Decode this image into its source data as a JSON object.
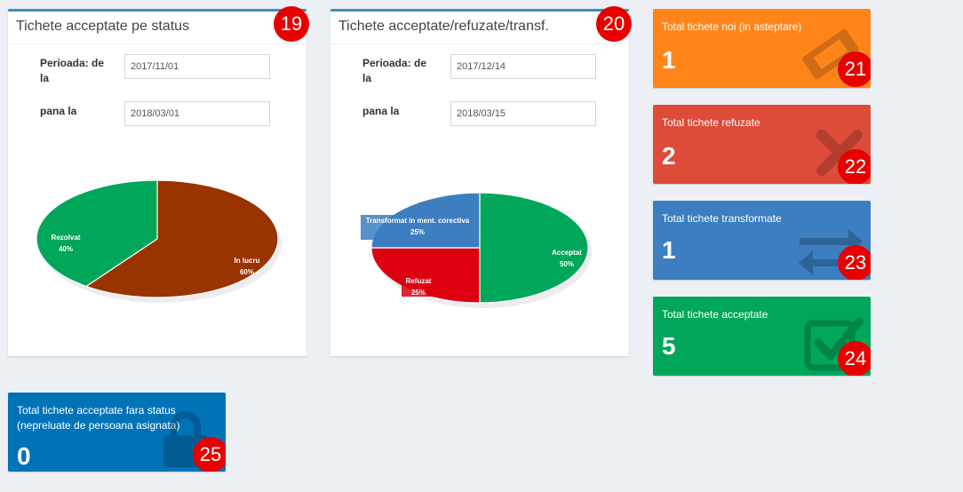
{
  "panel_status": {
    "title": "Tichete acceptate pe status",
    "period_from_label": "Perioada: de la",
    "period_from_value": "2017/11/01",
    "period_to_label": "pana la",
    "period_to_value": "2018/03/01",
    "badge": "19"
  },
  "panel_accept": {
    "title": "Tichete acceptate/refuzate/transf.",
    "period_from_label": "Perioada: de la",
    "period_from_value": "2017/12/14",
    "period_to_label": "pana la",
    "period_to_value": "2018/03/15",
    "badge": "20"
  },
  "tiles": {
    "new": {
      "label": "Total tichete noi (in asteptare)",
      "value": "1",
      "badge": "21",
      "color": "#ff851b"
    },
    "refused": {
      "label": "Total tichete refuzate",
      "value": "2",
      "badge": "22",
      "color": "#dd4b39"
    },
    "transformed": {
      "label": "Total tichete transformate",
      "value": "1",
      "badge": "23",
      "color": "#3c7ebf"
    },
    "accepted": {
      "label": "Total tichete acceptate",
      "value": "5",
      "badge": "24",
      "color": "#00a65a"
    },
    "no_status": {
      "label_line1": "Total tichete acceptate fara status",
      "label_line2": "(nepreluate de persoana asignata)",
      "value": "0",
      "badge": "25",
      "color": "#0073b7"
    }
  },
  "chart_data": [
    {
      "type": "pie",
      "title": "",
      "categories": [
        "Rezolvat",
        "In lucru"
      ],
      "values": [
        40,
        60
      ],
      "labels": [
        "40%",
        "60%"
      ],
      "colors": [
        "#00a65a",
        "#993300"
      ]
    },
    {
      "type": "pie",
      "title": "",
      "categories": [
        "Acceptat",
        "Refuzat",
        "Transformat in ment. corectiva"
      ],
      "values": [
        50,
        25,
        25
      ],
      "labels": [
        "50%",
        "25%",
        "25%"
      ],
      "colors": [
        "#00a65a",
        "#dd0011",
        "#3c7ebf"
      ]
    }
  ]
}
